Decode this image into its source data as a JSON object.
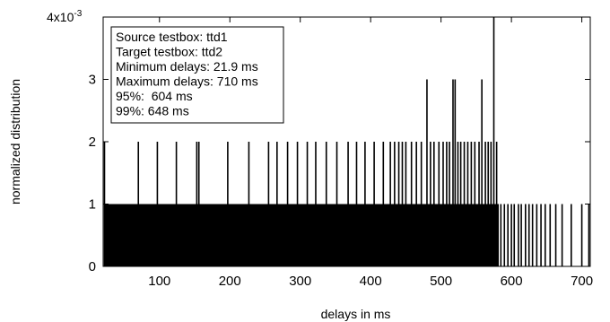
{
  "chart_data": {
    "type": "bar",
    "title": "",
    "xlabel": "delays in ms",
    "ylabel": "normalized distribution",
    "y_exponent_label": "4x10",
    "y_exponent_sup": "-3",
    "xlim": [
      20,
      712
    ],
    "ylim": [
      0,
      0.004
    ],
    "x_ticks": [
      100,
      200,
      300,
      400,
      500,
      600,
      700
    ],
    "y_ticks": [
      0,
      1,
      2,
      3
    ],
    "y_tick_scale": 0.001,
    "grid": false,
    "legend_box": {
      "position": "top-left",
      "lines": [
        "Source testbox: ttd1",
        "Target testbox: ttd2",
        "Minimum delays: 21.9 ms",
        "Maximum delays: 710 ms",
        "95%:  604 ms",
        "99%: 648 ms"
      ]
    },
    "series": [
      {
        "dense_base": {
          "x_start": 21.9,
          "x_end": 582,
          "value": 0.001
        },
        "values": [
          [
            21.9,
            0.002
          ],
          [
            28,
            0.001
          ],
          [
            35,
            0.001
          ],
          [
            42,
            0.001
          ],
          [
            50,
            0.001
          ],
          [
            57,
            0.001
          ],
          [
            64,
            0.001
          ],
          [
            70,
            0.002
          ],
          [
            78,
            0.001
          ],
          [
            85,
            0.001
          ],
          [
            92,
            0.001
          ],
          [
            97,
            0.002
          ],
          [
            100,
            0.001
          ],
          [
            110,
            0.001
          ],
          [
            118,
            0.001
          ],
          [
            124,
            0.002
          ],
          [
            131,
            0.001
          ],
          [
            138,
            0.001
          ],
          [
            147,
            0.001
          ],
          [
            153,
            0.002
          ],
          [
            156,
            0.002
          ],
          [
            170,
            0.001
          ],
          [
            183,
            0.001
          ],
          [
            197,
            0.002
          ],
          [
            212,
            0.001
          ],
          [
            227,
            0.002
          ],
          [
            240,
            0.001
          ],
          [
            255,
            0.002
          ],
          [
            267,
            0.002
          ],
          [
            282,
            0.002
          ],
          [
            296,
            0.002
          ],
          [
            310,
            0.002
          ],
          [
            322,
            0.002
          ],
          [
            337,
            0.002
          ],
          [
            352,
            0.002
          ],
          [
            368,
            0.002
          ],
          [
            380,
            0.002
          ],
          [
            392,
            0.002
          ],
          [
            405,
            0.002
          ],
          [
            418,
            0.002
          ],
          [
            428,
            0.002
          ],
          [
            434,
            0.002
          ],
          [
            440,
            0.002
          ],
          [
            445,
            0.002
          ],
          [
            450,
            0.002
          ],
          [
            458,
            0.002
          ],
          [
            465,
            0.002
          ],
          [
            472,
            0.002
          ],
          [
            480,
            0.003
          ],
          [
            485,
            0.002
          ],
          [
            490,
            0.002
          ],
          [
            497,
            0.002
          ],
          [
            503,
            0.002
          ],
          [
            508,
            0.002
          ],
          [
            512,
            0.002
          ],
          [
            517,
            0.003
          ],
          [
            520,
            0.003
          ],
          [
            524,
            0.002
          ],
          [
            528,
            0.002
          ],
          [
            533,
            0.002
          ],
          [
            538,
            0.002
          ],
          [
            543,
            0.002
          ],
          [
            548,
            0.002
          ],
          [
            554,
            0.002
          ],
          [
            558,
            0.003
          ],
          [
            563,
            0.002
          ],
          [
            567,
            0.002
          ],
          [
            571,
            0.002
          ],
          [
            575,
            0.004
          ],
          [
            579,
            0.002
          ],
          [
            585,
            0.001
          ],
          [
            590,
            0.001
          ],
          [
            595,
            0.001
          ],
          [
            600,
            0.001
          ],
          [
            604,
            0.001
          ],
          [
            610,
            0.001
          ],
          [
            614,
            0.001
          ],
          [
            620,
            0.001
          ],
          [
            625,
            0.001
          ],
          [
            630,
            0.001
          ],
          [
            636,
            0.001
          ],
          [
            642,
            0.001
          ],
          [
            648,
            0.001
          ],
          [
            655,
            0.001
          ],
          [
            663,
            0.001
          ],
          [
            672,
            0.001
          ],
          [
            685,
            0.001
          ],
          [
            700,
            0.001
          ],
          [
            710,
            0.001
          ]
        ]
      }
    ]
  }
}
